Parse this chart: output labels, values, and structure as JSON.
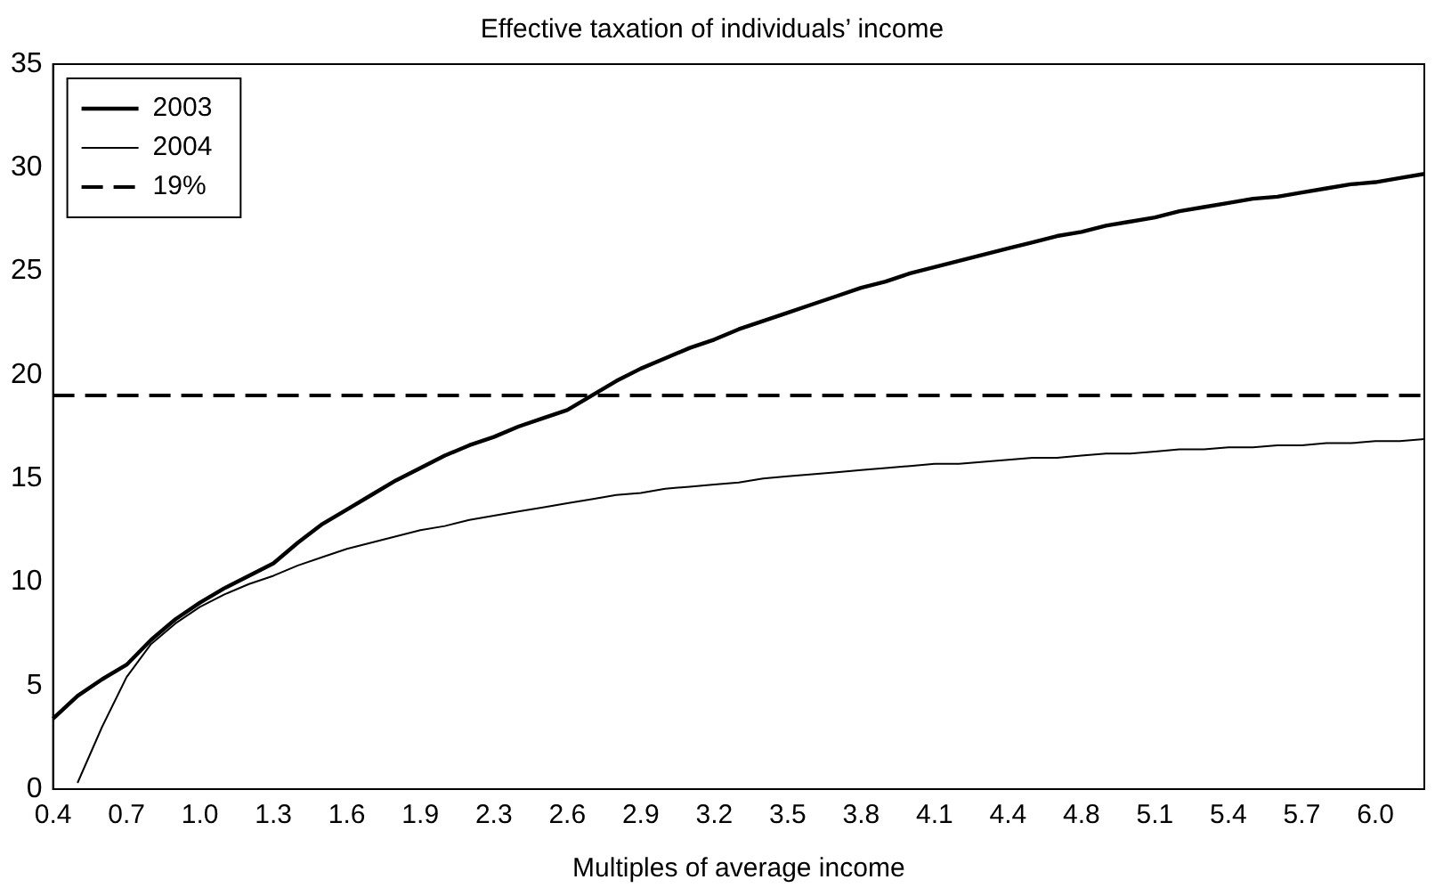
{
  "chart_data": {
    "type": "line",
    "title": "Effective taxation of individuals’ income",
    "xlabel": "Multiples of average income",
    "categories": [
      "0.4",
      null,
      null,
      "0.7",
      null,
      null,
      "1.0",
      null,
      null,
      "1.3",
      null,
      null,
      "1.6",
      null,
      null,
      "1.9",
      null,
      null,
      "2.3",
      null,
      null,
      "2.6",
      null,
      null,
      "2.9",
      null,
      null,
      "3.2",
      null,
      null,
      "3.5",
      null,
      null,
      "3.8",
      null,
      null,
      "4.1",
      null,
      null,
      "4.4",
      null,
      null,
      "4.8",
      null,
      null,
      "5.1",
      null,
      null,
      "5.4",
      null,
      null,
      "5.7",
      null,
      null,
      "6.0",
      null,
      null
    ],
    "series": [
      {
        "name": "2003",
        "color": "#000000",
        "line_style": "solid",
        "values": [
          3.4,
          4.5,
          5.3,
          6.0,
          7.2,
          8.2,
          9.0,
          9.7,
          10.3,
          10.9,
          11.9,
          12.8,
          13.5,
          14.2,
          14.9,
          15.5,
          16.1,
          16.6,
          17.0,
          17.5,
          17.9,
          18.3,
          19.0,
          19.7,
          20.3,
          20.8,
          21.3,
          21.7,
          22.2,
          22.6,
          23.0,
          23.4,
          23.8,
          24.2,
          24.5,
          24.9,
          25.2,
          25.5,
          25.8,
          26.1,
          26.4,
          26.7,
          26.9,
          27.2,
          27.4,
          27.6,
          27.9,
          28.1,
          28.3,
          28.5,
          28.6,
          28.8,
          29.0,
          29.2,
          29.3,
          29.5,
          29.7
        ]
      },
      {
        "name": "2004",
        "color": "#000000",
        "line_style": "solid",
        "values": [
          null,
          0.3,
          3.0,
          5.4,
          7.0,
          8.0,
          8.8,
          9.4,
          9.9,
          10.3,
          10.8,
          11.2,
          11.6,
          11.9,
          12.2,
          12.5,
          12.7,
          13.0,
          13.2,
          13.4,
          13.6,
          13.8,
          14.0,
          14.2,
          14.3,
          14.5,
          14.6,
          14.7,
          14.8,
          15.0,
          15.1,
          15.2,
          15.3,
          15.4,
          15.5,
          15.6,
          15.7,
          15.7,
          15.8,
          15.9,
          16.0,
          16.0,
          16.1,
          16.2,
          16.2,
          16.3,
          16.4,
          16.4,
          16.5,
          16.5,
          16.6,
          16.6,
          16.7,
          16.7,
          16.8,
          16.8,
          16.9
        ]
      },
      {
        "name": "19%",
        "color": "#000000",
        "line_style": "dashed",
        "values": [
          19,
          19,
          19,
          19,
          19,
          19,
          19,
          19,
          19,
          19,
          19,
          19,
          19,
          19,
          19,
          19,
          19,
          19,
          19,
          19,
          19,
          19,
          19,
          19,
          19,
          19,
          19,
          19,
          19,
          19,
          19,
          19,
          19,
          19,
          19,
          19,
          19,
          19,
          19,
          19,
          19,
          19,
          19,
          19,
          19,
          19,
          19,
          19,
          19,
          19,
          19,
          19,
          19,
          19,
          19,
          19,
          19
        ]
      }
    ],
    "ylim": [
      0,
      35
    ],
    "yticks": [
      0,
      5,
      10,
      15,
      20,
      25,
      30,
      35
    ],
    "grid": false,
    "legend": "top left",
    "marker": "none"
  }
}
